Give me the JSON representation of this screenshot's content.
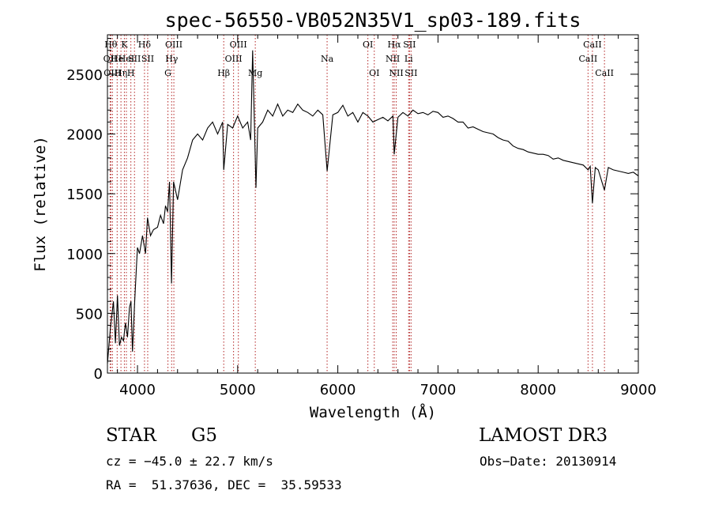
{
  "chart_data": {
    "type": "line",
    "title": "spec-56550-VB052N35V1_sp03-189.fits",
    "xlabel": "Wavelength (Å)",
    "ylabel": "Flux (relative)",
    "xlim": [
      3700,
      9000
    ],
    "ylim": [
      0,
      2830
    ],
    "xticks": [
      4000,
      5000,
      6000,
      7000,
      8000,
      9000
    ],
    "yticks": [
      0,
      500,
      1000,
      1500,
      2000,
      2500
    ],
    "grid": false,
    "series": [
      {
        "name": "spectrum",
        "x": [
          3700,
          3730,
          3760,
          3780,
          3800,
          3820,
          3840,
          3860,
          3880,
          3900,
          3920,
          3935,
          3950,
          3970,
          3990,
          4000,
          4020,
          4050,
          4080,
          4100,
          4130,
          4160,
          4200,
          4230,
          4260,
          4280,
          4300,
          4320,
          4340,
          4360,
          4400,
          4450,
          4500,
          4550,
          4600,
          4650,
          4700,
          4750,
          4800,
          4850,
          4861,
          4900,
          4950,
          5000,
          5050,
          5100,
          5130,
          5150,
          5183,
          5200,
          5250,
          5300,
          5350,
          5400,
          5450,
          5500,
          5550,
          5600,
          5650,
          5700,
          5750,
          5800,
          5850,
          5893,
          5950,
          6000,
          6050,
          6100,
          6150,
          6200,
          6250,
          6300,
          6350,
          6400,
          6450,
          6500,
          6550,
          6563,
          6600,
          6650,
          6700,
          6750,
          6800,
          6850,
          6900,
          6950,
          7000,
          7050,
          7100,
          7150,
          7200,
          7250,
          7300,
          7350,
          7400,
          7450,
          7500,
          7550,
          7600,
          7650,
          7700,
          7750,
          7800,
          7850,
          7900,
          7950,
          8000,
          8050,
          8100,
          8150,
          8200,
          8250,
          8300,
          8350,
          8400,
          8450,
          8498,
          8520,
          8542,
          8570,
          8600,
          8662,
          8700,
          8750,
          8800,
          8850,
          8900,
          8950,
          9000
        ],
        "values": [
          80,
          380,
          600,
          250,
          650,
          230,
          300,
          270,
          420,
          300,
          550,
          600,
          180,
          560,
          900,
          1050,
          1000,
          1150,
          1000,
          1300,
          1150,
          1200,
          1220,
          1320,
          1250,
          1400,
          1350,
          1600,
          750,
          1600,
          1450,
          1700,
          1800,
          1950,
          2000,
          1950,
          2050,
          2100,
          2000,
          2100,
          1700,
          2080,
          2050,
          2150,
          2050,
          2100,
          1950,
          2700,
          1550,
          2050,
          2100,
          2200,
          2150,
          2250,
          2150,
          2200,
          2180,
          2250,
          2200,
          2180,
          2150,
          2200,
          2160,
          1690,
          2160,
          2180,
          2240,
          2150,
          2180,
          2100,
          2180,
          2150,
          2100,
          2120,
          2140,
          2110,
          2150,
          1830,
          2140,
          2180,
          2150,
          2200,
          2170,
          2180,
          2160,
          2190,
          2180,
          2140,
          2150,
          2130,
          2100,
          2100,
          2050,
          2060,
          2040,
          2020,
          2010,
          2000,
          1970,
          1950,
          1940,
          1900,
          1880,
          1870,
          1850,
          1840,
          1830,
          1830,
          1820,
          1790,
          1800,
          1780,
          1770,
          1760,
          1750,
          1740,
          1700,
          1730,
          1420,
          1720,
          1700,
          1530,
          1720,
          1700,
          1690,
          1680,
          1670,
          1680,
          1650
        ]
      }
    ],
    "lines": [
      {
        "x": 3734,
        "label": "Hθ",
        "row": 0
      },
      {
        "x": 3727,
        "label": "OII",
        "row": 1
      },
      {
        "x": 3750,
        "label": "OIII",
        "row": 2
      },
      {
        "x": 3797,
        "label": "He",
        "row": 1
      },
      {
        "x": 3835,
        "label": "Hη",
        "row": 2
      },
      {
        "x": 3869,
        "label": "K",
        "row": 0
      },
      {
        "x": 3889,
        "label": "HeI",
        "row": 1
      },
      {
        "x": 3934,
        "label": "H",
        "row": 2
      },
      {
        "x": 3970,
        "label": "SII",
        "row": 1
      },
      {
        "x": 4070,
        "label": "Hδ",
        "row": 0
      },
      {
        "x": 4102,
        "label": "SII",
        "row": 1
      },
      {
        "x": 4304,
        "label": "G",
        "row": 2
      },
      {
        "x": 4341,
        "label": "Hγ",
        "row": 1
      },
      {
        "x": 4363,
        "label": "OIII",
        "row": 0
      },
      {
        "x": 4861,
        "label": "Hβ",
        "row": 2
      },
      {
        "x": 4959,
        "label": "OIII",
        "row": 1
      },
      {
        "x": 5007,
        "label": "OIII",
        "row": 0
      },
      {
        "x": 5176,
        "label": "Mg",
        "row": 2
      },
      {
        "x": 5893,
        "label": "Na",
        "row": 1
      },
      {
        "x": 6300,
        "label": "OI",
        "row": 0
      },
      {
        "x": 6364,
        "label": "OI",
        "row": 2
      },
      {
        "x": 6548,
        "label": "NII",
        "row": 1
      },
      {
        "x": 6563,
        "label": "Hα",
        "row": 0
      },
      {
        "x": 6583,
        "label": "NII",
        "row": 2
      },
      {
        "x": 6707,
        "label": "Li",
        "row": 1
      },
      {
        "x": 6716,
        "label": "SII",
        "row": 0
      },
      {
        "x": 6731,
        "label": "SII",
        "row": 2
      },
      {
        "x": 8498,
        "label": "CaII",
        "row": 1
      },
      {
        "x": 8542,
        "label": "CaII",
        "row": 0
      },
      {
        "x": 8662,
        "label": "CaII",
        "row": 2
      }
    ]
  },
  "info": {
    "object_type": "STAR",
    "object_class": "G5",
    "survey": "LAMOST DR3",
    "cz": "cz = −45.0 ± 22.7 km/s",
    "obs_date": "Obs−Date: 20130914",
    "radec": "RA =  51.37636, DEC =  35.59533"
  },
  "colors": {
    "spectrum": "#000000",
    "line_marker": "#b22222",
    "text": "#000000"
  }
}
